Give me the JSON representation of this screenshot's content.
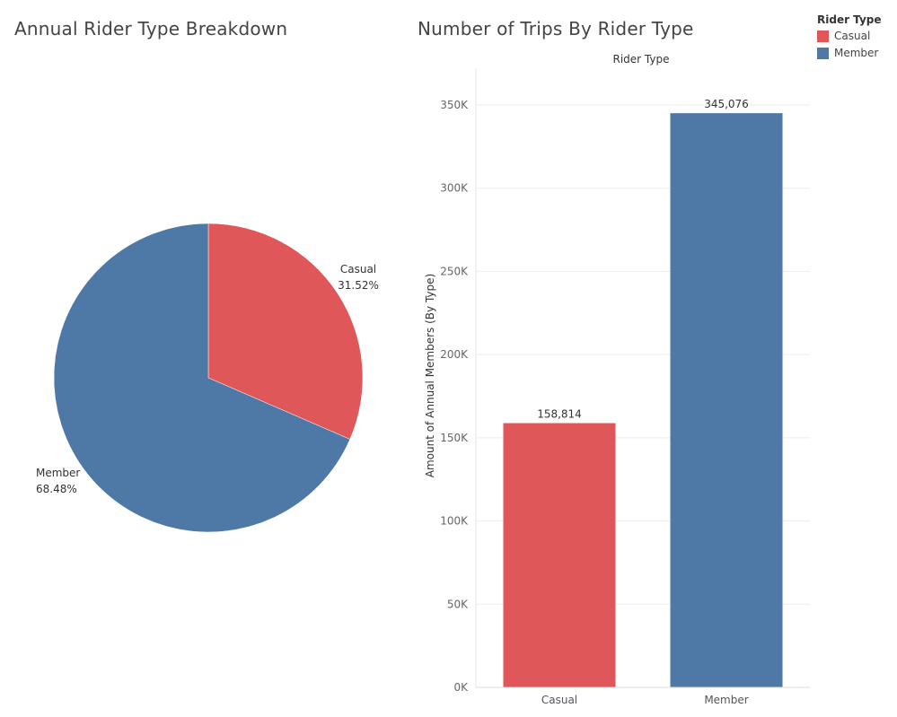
{
  "colors": {
    "casual": "#e05759",
    "member": "#4e79a7"
  },
  "legend": {
    "title": "Rider Type",
    "items": [
      {
        "label": "Casual",
        "color": "#e05759"
      },
      {
        "label": "Member",
        "color": "#4e79a7"
      }
    ]
  },
  "chart_data": [
    {
      "type": "pie",
      "title": "Annual Rider Type Breakdown",
      "slices": [
        {
          "label": "Casual",
          "value": 31.52,
          "value_label": "31.52%",
          "color": "#e05759"
        },
        {
          "label": "Member",
          "value": 68.48,
          "value_label": "68.48%",
          "color": "#4e79a7"
        }
      ]
    },
    {
      "type": "bar",
      "title": "Number of Trips By Rider Type",
      "header": "Rider Type",
      "ylabel": "Amount of Annual Members (By Type)",
      "categories": [
        "Casual",
        "Member"
      ],
      "values": [
        158814,
        345076
      ],
      "value_labels": [
        "158,814",
        "345,076"
      ],
      "colors": [
        "#e05759",
        "#4e79a7"
      ],
      "ylim": [
        0,
        350000
      ],
      "yticks": [
        0,
        50000,
        100000,
        150000,
        200000,
        250000,
        300000,
        350000
      ],
      "ytick_labels": [
        "0K",
        "50K",
        "100K",
        "150K",
        "200K",
        "250K",
        "300K",
        "350K"
      ],
      "grid": true
    }
  ]
}
